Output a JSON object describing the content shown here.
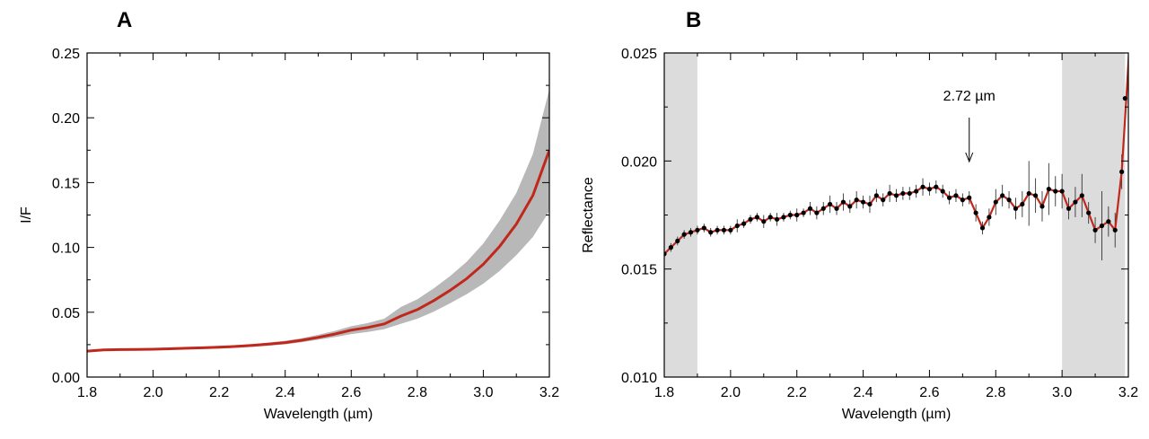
{
  "chart_data": [
    {
      "panel": "A",
      "type": "line",
      "xlabel": "Wavelength (µm)",
      "ylabel": "I/F",
      "xlim": [
        1.8,
        3.2
      ],
      "ylim": [
        0.0,
        0.25
      ],
      "xticks": [
        "1.8",
        "2.0",
        "2.2",
        "2.4",
        "2.6",
        "2.8",
        "3.0",
        "3.2"
      ],
      "yticks": [
        "0.00",
        "0.05",
        "0.10",
        "0.15",
        "0.20",
        "0.25"
      ],
      "grid": false,
      "colors": {
        "line": "#c0281c",
        "band": "#b8b8b8"
      },
      "series": [
        {
          "x": [
            1.8,
            1.85,
            1.9,
            1.95,
            2.0,
            2.05,
            2.1,
            2.15,
            2.2,
            2.25,
            2.3,
            2.35,
            2.4,
            2.45,
            2.5,
            2.55,
            2.6,
            2.65,
            2.7,
            2.75,
            2.8,
            2.85,
            2.9,
            2.95,
            3.0,
            3.05,
            3.1,
            3.15,
            3.2
          ],
          "y": [
            0.02,
            0.021,
            0.0212,
            0.0213,
            0.0215,
            0.0218,
            0.0222,
            0.0226,
            0.023,
            0.0236,
            0.0244,
            0.0254,
            0.0266,
            0.0284,
            0.0306,
            0.0332,
            0.0362,
            0.0382,
            0.041,
            0.047,
            0.052,
            0.059,
            0.067,
            0.076,
            0.087,
            0.101,
            0.118,
            0.14,
            0.175
          ],
          "y_low": [
            0.019,
            0.0202,
            0.0205,
            0.0206,
            0.0208,
            0.021,
            0.0213,
            0.0217,
            0.022,
            0.0226,
            0.0233,
            0.0242,
            0.0253,
            0.0268,
            0.0288,
            0.0308,
            0.0332,
            0.0348,
            0.037,
            0.041,
            0.045,
            0.0505,
            0.057,
            0.064,
            0.072,
            0.082,
            0.094,
            0.108,
            0.128
          ],
          "y_high": [
            0.021,
            0.0218,
            0.0219,
            0.022,
            0.0222,
            0.0226,
            0.0231,
            0.0235,
            0.024,
            0.0246,
            0.0255,
            0.0266,
            0.028,
            0.03,
            0.0326,
            0.0356,
            0.0392,
            0.0416,
            0.045,
            0.054,
            0.06,
            0.0685,
            0.078,
            0.089,
            0.103,
            0.121,
            0.142,
            0.172,
            0.222
          ]
        }
      ]
    },
    {
      "panel": "B",
      "type": "line",
      "xlabel": "Wavelength (µm)",
      "ylabel": "Reflectance",
      "xlim": [
        1.8,
        3.2
      ],
      "ylim": [
        0.01,
        0.025
      ],
      "xticks": [
        "1.8",
        "2.0",
        "2.2",
        "2.4",
        "2.6",
        "2.8",
        "3.0",
        "3.2"
      ],
      "yticks": [
        "0.010",
        "0.015",
        "0.020",
        "0.025"
      ],
      "grid": false,
      "shaded_regions": [
        [
          1.8,
          1.9
        ],
        [
          3.0,
          3.19
        ]
      ],
      "annotation": {
        "text": "2.72 µm",
        "x": 2.72
      },
      "colors": {
        "line": "#c0281c",
        "points": "#000000",
        "shade": "#dcdcdc"
      },
      "series": [
        {
          "x": [
            1.8,
            1.82,
            1.84,
            1.86,
            1.88,
            1.9,
            1.92,
            1.94,
            1.96,
            1.98,
            2.0,
            2.02,
            2.04,
            2.06,
            2.08,
            2.1,
            2.12,
            2.14,
            2.16,
            2.18,
            2.2,
            2.22,
            2.24,
            2.26,
            2.28,
            2.3,
            2.32,
            2.34,
            2.36,
            2.38,
            2.4,
            2.42,
            2.44,
            2.46,
            2.48,
            2.5,
            2.52,
            2.54,
            2.56,
            2.58,
            2.6,
            2.62,
            2.64,
            2.66,
            2.68,
            2.7,
            2.72,
            2.74,
            2.76,
            2.78,
            2.8,
            2.82,
            2.84,
            2.86,
            2.88,
            2.9,
            2.92,
            2.94,
            2.96,
            2.98,
            3.0,
            3.02,
            3.04,
            3.06,
            3.08,
            3.1,
            3.12,
            3.14,
            3.16,
            3.18
          ],
          "y": [
            0.0157,
            0.016,
            0.0163,
            0.0166,
            0.0167,
            0.0168,
            0.0169,
            0.0167,
            0.0168,
            0.0168,
            0.0168,
            0.017,
            0.0171,
            0.0173,
            0.0174,
            0.0172,
            0.0174,
            0.0173,
            0.0174,
            0.0175,
            0.0175,
            0.0176,
            0.0178,
            0.0176,
            0.0178,
            0.018,
            0.0178,
            0.0181,
            0.0179,
            0.0182,
            0.0181,
            0.018,
            0.0184,
            0.0182,
            0.0185,
            0.0184,
            0.0185,
            0.0185,
            0.0186,
            0.0188,
            0.0187,
            0.0188,
            0.0186,
            0.0183,
            0.0184,
            0.0182,
            0.0183,
            0.0176,
            0.0169,
            0.0174,
            0.0181,
            0.0184,
            0.0182,
            0.0178,
            0.018,
            0.0185,
            0.0184,
            0.0179,
            0.0187,
            0.0186,
            0.0186,
            0.0178,
            0.0181,
            0.0184,
            0.0176,
            0.0168,
            0.017,
            0.0172,
            0.0168,
            0.0195
          ],
          "err": [
            0.0003,
            0.0002,
            0.0002,
            0.0002,
            0.0002,
            0.0002,
            0.0002,
            0.0002,
            0.0002,
            0.0002,
            0.0002,
            0.0003,
            0.0002,
            0.0002,
            0.0002,
            0.0003,
            0.0002,
            0.0003,
            0.0002,
            0.0002,
            0.0003,
            0.0002,
            0.0003,
            0.0003,
            0.0003,
            0.0004,
            0.0003,
            0.0004,
            0.0003,
            0.0004,
            0.0003,
            0.0004,
            0.0003,
            0.0003,
            0.0004,
            0.0003,
            0.0003,
            0.0003,
            0.0003,
            0.0004,
            0.0003,
            0.0003,
            0.0003,
            0.0003,
            0.0003,
            0.0003,
            0.0003,
            0.0004,
            0.0003,
            0.0004,
            0.0006,
            0.0005,
            0.0004,
            0.0005,
            0.0006,
            0.0015,
            0.0008,
            0.0007,
            0.0012,
            0.0007,
            0.0008,
            0.0005,
            0.0007,
            0.001,
            0.0005,
            0.0006,
            0.0016,
            0.0007,
            0.0008,
            0.0008
          ]
        }
      ]
    }
  ]
}
